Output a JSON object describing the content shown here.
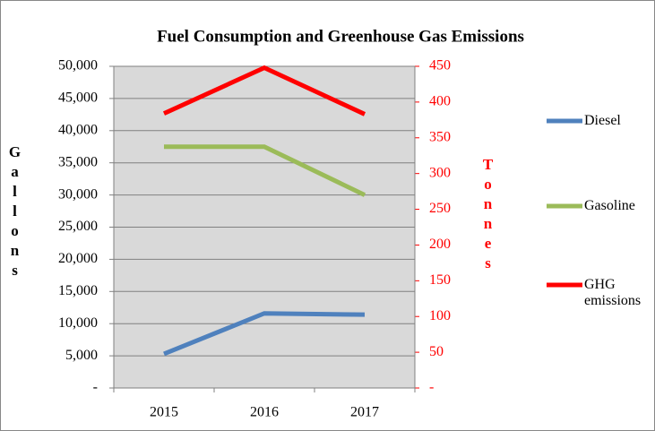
{
  "chart_data": {
    "type": "line",
    "title": "Fuel Consumption and Greenhouse Gas Emissions",
    "ylabel": "Gallons",
    "y2label": "Tonnes",
    "categories": [
      "2015",
      "2016",
      "2017"
    ],
    "series": [
      {
        "name": "Diesel",
        "color": "#4f81bd",
        "values": [
          5300,
          11600,
          11400
        ]
      },
      {
        "name": "Gasoline",
        "color": "#9bbb59",
        "values": [
          37500,
          37500,
          30000
        ]
      },
      {
        "name": "GHG emissions",
        "color": "#ff0000",
        "values": [
          384,
          448,
          383
        ],
        "axis": "y2"
      }
    ],
    "ylim": [
      0,
      50000
    ],
    "yticks": [
      {
        "value": 0,
        "label": "-"
      },
      {
        "value": 5000,
        "label": "5,000"
      },
      {
        "value": 10000,
        "label": "10,000"
      },
      {
        "value": 15000,
        "label": "15,000"
      },
      {
        "value": 20000,
        "label": "20,000"
      },
      {
        "value": 25000,
        "label": "25,000"
      },
      {
        "value": 30000,
        "label": "30,000"
      },
      {
        "value": 35000,
        "label": "35,000"
      },
      {
        "value": 40000,
        "label": "40,000"
      },
      {
        "value": 45000,
        "label": "45,000"
      },
      {
        "value": 50000,
        "label": "50,000"
      }
    ],
    "y2lim": [
      0,
      450
    ],
    "y2ticks": [
      {
        "value": 0,
        "label": "-"
      },
      50,
      100,
      150,
      200,
      250,
      300,
      350,
      400,
      450
    ],
    "y2color": "#ff0000",
    "grid": true,
    "legend": "right"
  }
}
